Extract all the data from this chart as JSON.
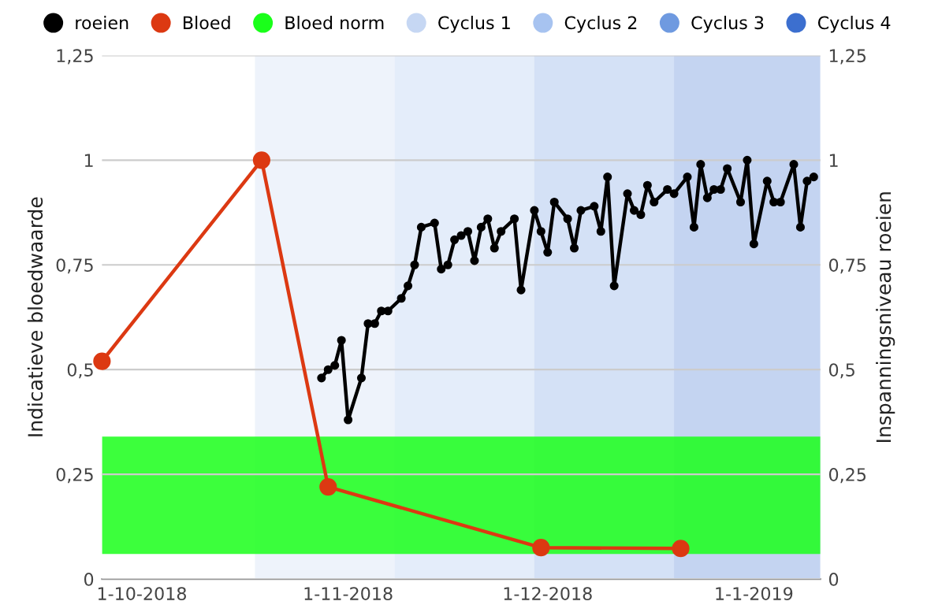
{
  "chart_data": {
    "type": "line",
    "xlabel": null,
    "ylabel": "Indicatieve bloedwaarde",
    "y2label": "Inspanningsniveau roeien",
    "xlim": [
      "2018-09-25",
      "2019-01-11"
    ],
    "xticks": [
      {
        "value": "2018-10-01",
        "label": "1-10-2018"
      },
      {
        "value": "2018-11-01",
        "label": "1-11-2018"
      },
      {
        "value": "2018-12-01",
        "label": "1-12-2018"
      },
      {
        "value": "2019-01-01",
        "label": "1-1-2019"
      }
    ],
    "ylim": [
      0,
      1.25
    ],
    "yticks": [
      0,
      {
        "value": 0.25,
        "label": "0,25"
      },
      {
        "value": 0.5,
        "label": "0,5"
      },
      {
        "value": 0.75,
        "label": "0,75"
      },
      1,
      {
        "value": 1.25,
        "label": "1,25"
      }
    ],
    "y2lim": [
      0,
      1.25
    ],
    "y2ticks": [
      0,
      {
        "value": 0.25,
        "label": "0,25"
      },
      {
        "value": 0.5,
        "label": "0,5"
      },
      {
        "value": 0.75,
        "label": "0,75"
      },
      1,
      {
        "value": 1.25,
        "label": "1,25"
      }
    ],
    "grid": "y",
    "legend": "top",
    "series": [
      {
        "name": "roeien",
        "color": "#000000",
        "axis": "y2",
        "marker": "circle",
        "x": [
          "2018-10-28",
          "2018-10-29",
          "2018-10-30",
          "2018-10-31",
          "2018-11-01",
          "2018-11-03",
          "2018-11-04",
          "2018-11-05",
          "2018-11-06",
          "2018-11-07",
          "2018-11-09",
          "2018-11-10",
          "2018-11-11",
          "2018-11-12",
          "2018-11-14",
          "2018-11-15",
          "2018-11-16",
          "2018-11-17",
          "2018-11-18",
          "2018-11-19",
          "2018-11-20",
          "2018-11-21",
          "2018-11-22",
          "2018-11-23",
          "2018-11-24",
          "2018-11-26",
          "2018-11-27",
          "2018-11-29",
          "2018-11-30",
          "2018-12-01",
          "2018-12-02",
          "2018-12-04",
          "2018-12-05",
          "2018-12-06",
          "2018-12-08",
          "2018-12-09",
          "2018-12-10",
          "2018-12-11",
          "2018-12-13",
          "2018-12-14",
          "2018-12-15",
          "2018-12-16",
          "2018-12-17",
          "2018-12-19",
          "2018-12-20",
          "2018-12-22",
          "2018-12-23",
          "2018-12-24",
          "2018-12-25",
          "2018-12-26",
          "2018-12-27",
          "2018-12-28",
          "2018-12-30",
          "2018-12-31",
          "2019-01-01",
          "2019-01-03",
          "2019-01-04",
          "2019-01-05",
          "2019-01-07",
          "2019-01-08",
          "2019-01-09",
          "2019-01-10"
        ],
        "values": [
          0.48,
          0.5,
          0.51,
          0.57,
          0.38,
          0.48,
          0.61,
          0.61,
          0.64,
          0.64,
          0.67,
          0.7,
          0.75,
          0.84,
          0.85,
          0.74,
          0.75,
          0.81,
          0.82,
          0.83,
          0.76,
          0.84,
          0.86,
          0.79,
          0.83,
          0.86,
          0.69,
          0.88,
          0.83,
          0.78,
          0.9,
          0.86,
          0.79,
          0.88,
          0.89,
          0.83,
          0.96,
          0.7,
          0.92,
          0.88,
          0.87,
          0.94,
          0.9,
          0.93,
          0.92,
          0.96,
          0.84,
          0.99,
          0.91,
          0.93,
          0.93,
          0.98,
          0.9,
          1.0,
          0.8,
          0.95,
          0.9,
          0.9,
          0.99,
          0.84,
          0.95,
          0.96
        ]
      },
      {
        "name": "Bloed",
        "color": "#dc3912",
        "marker": "circle",
        "x": [
          "2018-09-25",
          "2018-10-19",
          "2018-10-29",
          "2018-11-30",
          "2018-12-21"
        ],
        "values": [
          0.52,
          1.0,
          0.22,
          0.075,
          0.073
        ]
      }
    ],
    "bands": [
      {
        "axis": "y",
        "from": 0.06,
        "to": 0.34,
        "label": "Bloed norm",
        "color": "#1aff1a"
      },
      {
        "axis": "x",
        "from": "2018-10-18",
        "to": "2018-11-08",
        "label": "Cyclus 1",
        "color": "#c6d7f3"
      },
      {
        "axis": "x",
        "from": "2018-11-08",
        "to": "2018-11-29",
        "label": "Cyclus 2",
        "color": "#a7c3f0"
      },
      {
        "axis": "x",
        "from": "2018-11-29",
        "to": "2018-12-20",
        "label": "Cyclus 3",
        "color": "#6f9ae0"
      },
      {
        "axis": "x",
        "from": "2018-12-20",
        "to": "2019-01-11",
        "label": "Cyclus 4",
        "color": "#3c6fcf"
      }
    ]
  }
}
